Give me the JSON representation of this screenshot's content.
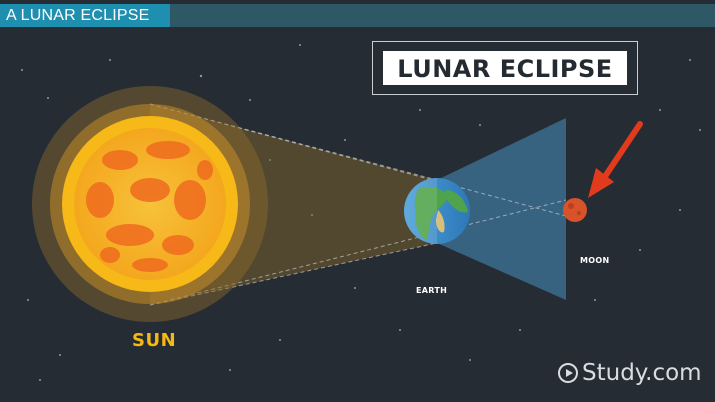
{
  "header": {
    "title": "A LUNAR ECLIPSE"
  },
  "heading": {
    "text": "LUNAR ECLIPSE"
  },
  "labels": {
    "sun": "SUN",
    "earth": "EARTH",
    "moon": "MOON"
  },
  "brand": {
    "text": "Study.com",
    "icon": "play-circle-icon"
  },
  "colors": {
    "background": "#262c33",
    "title_bar": "#1f8fb0",
    "sun_core": "#f6a51c",
    "sun_spots": "#ef6b1f",
    "sun_label": "#f5b914",
    "shadow_cone": "#3b6d8f",
    "moon": "#d9532a",
    "arrow": "#e23a1c"
  }
}
